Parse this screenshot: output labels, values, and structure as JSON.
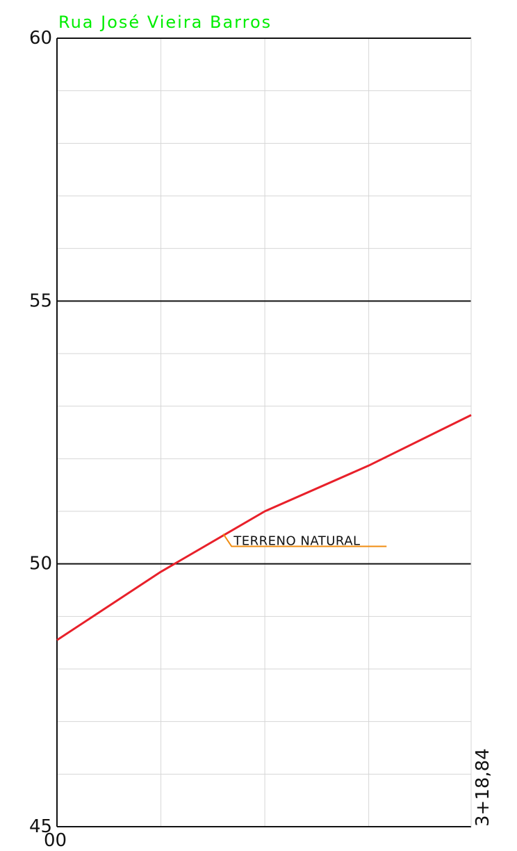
{
  "chart_data": {
    "type": "line",
    "title": "Rua José Vieira Barros",
    "xlabel": "",
    "ylabel": "",
    "xlim": [
      0,
      318.84
    ],
    "ylim": [
      45,
      60
    ],
    "x_tick_labels": [
      "00",
      "3+18,84"
    ],
    "y_ticks": [
      {
        "value": 45,
        "label": "45"
      },
      {
        "value": 50,
        "label": "50"
      },
      {
        "value": 55,
        "label": "55"
      },
      {
        "value": 60,
        "label": "60"
      }
    ],
    "minor_y_step": 1,
    "minor_x_step": 80,
    "grid": true,
    "series": [
      {
        "name": "TERRENO NATURAL",
        "x": [
          0,
          80,
          160,
          240,
          318.84
        ],
        "y": [
          48.55,
          49.85,
          51.0,
          51.87,
          52.83
        ]
      }
    ],
    "annotations": [
      {
        "text": "TERRENO NATURAL",
        "x": 128,
        "y": 50.57
      }
    ]
  },
  "colors": {
    "title": "#00ee00",
    "terrain_line": "#e8202a",
    "callout": "#f08c10",
    "major_grid": "#111111",
    "minor_grid": "#d6d6d6",
    "axis": "#111111"
  }
}
